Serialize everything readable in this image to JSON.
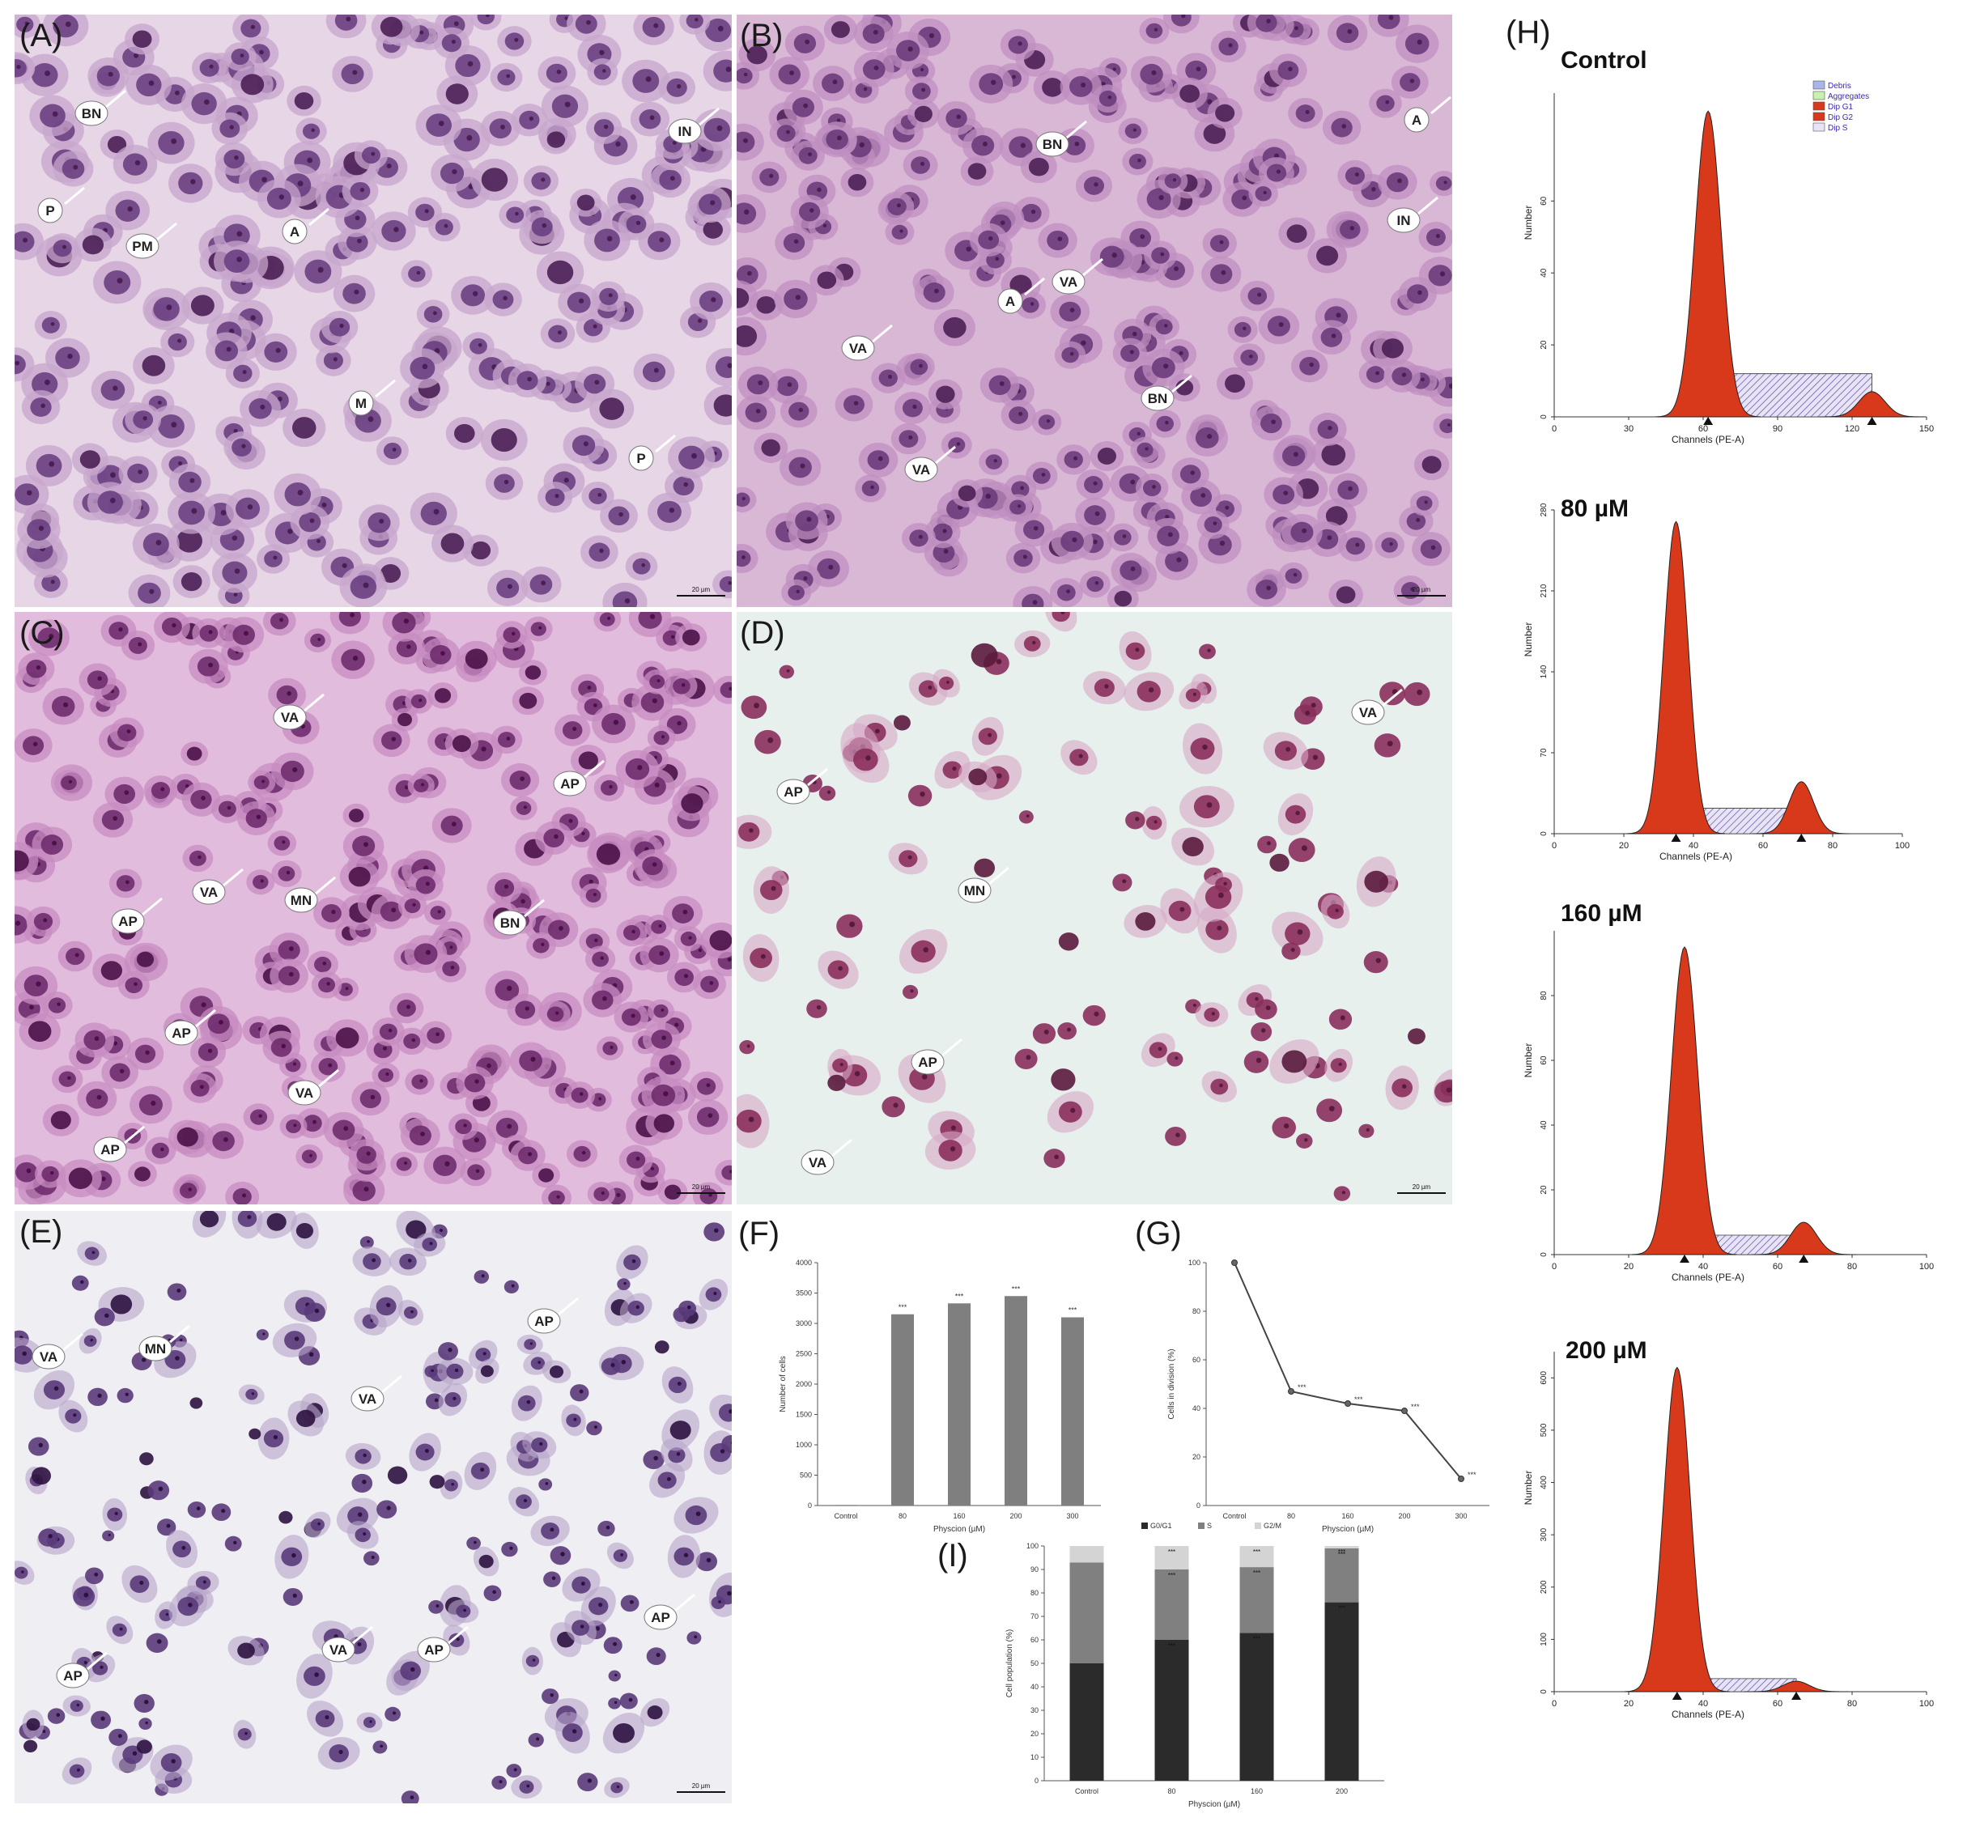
{
  "panels": {
    "A": {
      "letter": "(A)",
      "labels": [
        "BN",
        "IN",
        "P",
        "PM",
        "A",
        "M",
        "P"
      ],
      "scale": "20 µm"
    },
    "B": {
      "letter": "(B)",
      "labels": [
        "A",
        "BN",
        "IN",
        "VA",
        "A",
        "VA",
        "BN",
        "VA"
      ],
      "scale": "20 µm"
    },
    "C": {
      "letter": "(C)",
      "labels": [
        "VA",
        "AP",
        "VA",
        "MN",
        "AP",
        "BN",
        "AP",
        "VA",
        "AP"
      ],
      "scale": "20 µm"
    },
    "D": {
      "letter": "(D)",
      "labels": [
        "VA",
        "AP",
        "MN",
        "AP",
        "VA"
      ],
      "scale": "20 µm"
    },
    "E": {
      "letter": "(E)",
      "labels": [
        "VA",
        "MN",
        "AP",
        "VA",
        "AP",
        "VA",
        "AP",
        "AP"
      ],
      "scale": "20 µm"
    },
    "F": {
      "letter": "(F)"
    },
    "G": {
      "letter": "(G)"
    },
    "H": {
      "letter": "(H)"
    },
    "I": {
      "letter": "(I)"
    }
  },
  "chart_data": [
    {
      "id": "F",
      "type": "bar",
      "categories": [
        "Control",
        "80",
        "160",
        "200",
        "300"
      ],
      "values": [
        10,
        3150,
        3330,
        3450,
        3100
      ],
      "significance": [
        "",
        "***",
        "***",
        "***",
        "***"
      ],
      "xlabel": "Physcion (µM)",
      "ylabel": "Number of cells",
      "ylim": [
        0,
        4000
      ],
      "yticks": [
        "0",
        "500",
        "1000",
        "1500",
        "2000",
        "2500",
        "3000",
        "3500",
        "4000"
      ]
    },
    {
      "id": "G",
      "type": "line",
      "categories": [
        "Control",
        "80",
        "160",
        "200",
        "300"
      ],
      "values": [
        100,
        47,
        42,
        39,
        11
      ],
      "significance": [
        "",
        "***",
        "***",
        "***",
        "***"
      ],
      "xlabel": "Physcion (µM)",
      "ylabel": "Cells in division (%)",
      "ylim": [
        0,
        100
      ],
      "yticks": [
        "0",
        "20",
        "40",
        "60",
        "80",
        "100"
      ]
    },
    {
      "id": "H",
      "type": "area",
      "histograms": [
        {
          "title": "Control",
          "xlim": [
            0,
            150
          ],
          "xticks": [
            "0",
            "30",
            "60",
            "90",
            "120",
            "150"
          ],
          "ylim": [
            0,
            90
          ],
          "yticks": [
            "0",
            "20",
            "40",
            "60"
          ],
          "xlabel": "Channels (PE-A)",
          "ylabel": "Number",
          "g1_peak_channel": 62,
          "g1_peak_height": 85,
          "g2_peak_channel": 128,
          "g2_peak_height": 7,
          "s_level": 12,
          "legend": [
            "Debris",
            "Aggregates",
            "Dip G1",
            "Dip G2",
            "Dip S"
          ]
        },
        {
          "title": "80 µM",
          "xlim": [
            0,
            100
          ],
          "xticks": [
            "0",
            "20",
            "40",
            "60",
            "80",
            "100"
          ],
          "ylim": [
            0,
            280
          ],
          "yticks": [
            "0",
            "70",
            "140",
            "210",
            "280"
          ],
          "xlabel": "Channels (PE-A)",
          "ylabel": "Number",
          "g1_peak_channel": 35,
          "g1_peak_height": 270,
          "g2_peak_channel": 71,
          "g2_peak_height": 45,
          "s_level": 22
        },
        {
          "title": "160 µM",
          "xlim": [
            0,
            100
          ],
          "xticks": [
            "0",
            "20",
            "40",
            "60",
            "80",
            "100"
          ],
          "ylim": [
            0,
            100
          ],
          "yticks": [
            "0",
            "20",
            "40",
            "60",
            "80"
          ],
          "xlabel": "Channels (PE-A)",
          "ylabel": "Number",
          "g1_peak_channel": 35,
          "g1_peak_height": 95,
          "g2_peak_channel": 67,
          "g2_peak_height": 10,
          "s_level": 6
        },
        {
          "title": "200 µM",
          "xlim": [
            0,
            100
          ],
          "xticks": [
            "0",
            "20",
            "40",
            "60",
            "80",
            "100"
          ],
          "ylim": [
            0,
            650
          ],
          "yticks": [
            "0",
            "100",
            "200",
            "300",
            "400",
            "500",
            "600"
          ],
          "xlabel": "Channels (PE-A)",
          "ylabel": "Number",
          "g1_peak_channel": 33,
          "g1_peak_height": 620,
          "g2_peak_channel": 65,
          "g2_peak_height": 20,
          "s_level": 25
        }
      ]
    },
    {
      "id": "I",
      "type": "bar",
      "stacked": true,
      "categories": [
        "Control",
        "80",
        "160",
        "200"
      ],
      "series": [
        {
          "name": "G0/G1",
          "values": [
            50,
            60,
            63,
            76
          ]
        },
        {
          "name": "S",
          "values": [
            43,
            30,
            28,
            23
          ]
        },
        {
          "name": "G2/M",
          "values": [
            7,
            10,
            9,
            1
          ]
        }
      ],
      "significance": [
        "",
        "***",
        "***",
        "***"
      ],
      "xlabel": "Physcion (µM)",
      "ylabel": "Cell population (%)",
      "ylim": [
        0,
        100
      ],
      "yticks": [
        "0",
        "10",
        "20",
        "30",
        "40",
        "50",
        "60",
        "70",
        "80",
        "90",
        "100"
      ]
    }
  ]
}
